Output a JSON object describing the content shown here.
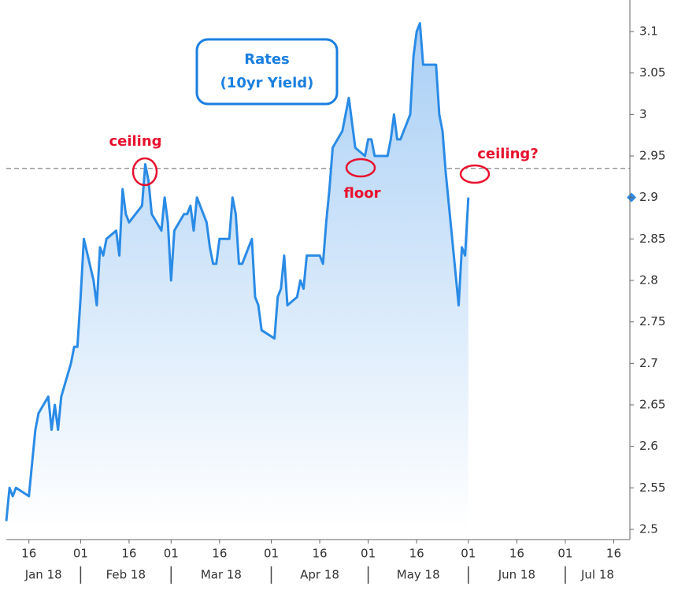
{
  "chart_data": {
    "type": "line",
    "title": "Rates",
    "subtitle": "(10yr Yield)",
    "x": [
      "2018-01-09",
      "2018-01-10",
      "2018-01-11",
      "2018-01-12",
      "2018-01-16",
      "2018-01-17",
      "2018-01-18",
      "2018-01-19",
      "2018-01-22",
      "2018-01-23",
      "2018-01-24",
      "2018-01-25",
      "2018-01-26",
      "2018-01-29",
      "2018-01-30",
      "2018-01-31",
      "2018-02-01",
      "2018-02-02",
      "2018-02-05",
      "2018-02-06",
      "2018-02-07",
      "2018-02-08",
      "2018-02-09",
      "2018-02-12",
      "2018-02-13",
      "2018-02-14",
      "2018-02-15",
      "2018-02-16",
      "2018-02-20",
      "2018-02-21",
      "2018-02-22",
      "2018-02-23",
      "2018-02-26",
      "2018-02-27",
      "2018-02-28",
      "2018-03-01",
      "2018-03-02",
      "2018-03-05",
      "2018-03-06",
      "2018-03-07",
      "2018-03-08",
      "2018-03-09",
      "2018-03-12",
      "2018-03-13",
      "2018-03-14",
      "2018-03-15",
      "2018-03-16",
      "2018-03-19",
      "2018-03-20",
      "2018-03-21",
      "2018-03-22",
      "2018-03-23",
      "2018-03-26",
      "2018-03-27",
      "2018-03-28",
      "2018-03-29",
      "2018-04-02",
      "2018-04-03",
      "2018-04-04",
      "2018-04-05",
      "2018-04-06",
      "2018-04-09",
      "2018-04-10",
      "2018-04-11",
      "2018-04-12",
      "2018-04-13",
      "2018-04-16",
      "2018-04-17",
      "2018-04-18",
      "2018-04-19",
      "2018-04-20",
      "2018-04-23",
      "2018-04-24",
      "2018-04-25",
      "2018-04-26",
      "2018-04-27",
      "2018-04-30",
      "2018-05-01",
      "2018-05-02",
      "2018-05-03",
      "2018-05-04",
      "2018-05-07",
      "2018-05-08",
      "2018-05-09",
      "2018-05-10",
      "2018-05-11",
      "2018-05-14",
      "2018-05-15",
      "2018-05-16",
      "2018-05-17",
      "2018-05-18",
      "2018-05-21",
      "2018-05-22",
      "2018-05-23",
      "2018-05-24",
      "2018-05-25",
      "2018-05-29",
      "2018-05-30",
      "2018-05-31",
      "2018-06-01"
    ],
    "values": [
      2.51,
      2.55,
      2.54,
      2.55,
      2.54,
      2.58,
      2.62,
      2.64,
      2.66,
      2.62,
      2.65,
      2.62,
      2.66,
      2.7,
      2.72,
      2.72,
      2.78,
      2.85,
      2.8,
      2.77,
      2.84,
      2.83,
      2.85,
      2.86,
      2.83,
      2.91,
      2.88,
      2.87,
      2.89,
      2.94,
      2.92,
      2.88,
      2.86,
      2.9,
      2.87,
      2.8,
      2.86,
      2.88,
      2.88,
      2.89,
      2.86,
      2.9,
      2.87,
      2.84,
      2.82,
      2.82,
      2.85,
      2.85,
      2.9,
      2.88,
      2.82,
      2.82,
      2.85,
      2.78,
      2.77,
      2.74,
      2.73,
      2.78,
      2.79,
      2.83,
      2.77,
      2.78,
      2.8,
      2.79,
      2.83,
      2.83,
      2.83,
      2.82,
      2.87,
      2.91,
      2.96,
      2.98,
      3.0,
      3.02,
      2.99,
      2.96,
      2.95,
      2.97,
      2.97,
      2.95,
      2.95,
      2.95,
      2.97,
      3.0,
      2.97,
      2.97,
      3.0,
      3.07,
      3.1,
      3.11,
      3.06,
      3.06,
      3.06,
      3.0,
      2.98,
      2.93,
      2.77,
      2.84,
      2.83,
      2.9
    ],
    "color": "#2a8be6",
    "xlim": [
      "2018-01-09",
      "2018-07-21"
    ],
    "xticks": [
      {
        "value": "2018-01-16",
        "label": "16"
      },
      {
        "value": "2018-02-01",
        "label": "01"
      },
      {
        "value": "2018-02-16",
        "label": "16"
      },
      {
        "value": "2018-03-01",
        "label": "01"
      },
      {
        "value": "2018-03-16",
        "label": "16"
      },
      {
        "value": "2018-04-01",
        "label": "01"
      },
      {
        "value": "2018-04-16",
        "label": "16"
      },
      {
        "value": "2018-05-01",
        "label": "01"
      },
      {
        "value": "2018-05-16",
        "label": "16"
      },
      {
        "value": "2018-06-01",
        "label": "01"
      },
      {
        "value": "2018-06-16",
        "label": "16"
      },
      {
        "value": "2018-07-01",
        "label": "01"
      },
      {
        "value": "2018-07-16",
        "label": "16"
      }
    ],
    "month_labels": [
      {
        "value": "2018-01-01",
        "label": "Jan 18"
      },
      {
        "value": "2018-02-01",
        "label": "Feb 18"
      },
      {
        "value": "2018-03-01",
        "label": "Mar 18"
      },
      {
        "value": "2018-04-01",
        "label": "Apr 18"
      },
      {
        "value": "2018-05-01",
        "label": "May 18"
      },
      {
        "value": "2018-06-01",
        "label": "Jun 18"
      },
      {
        "value": "2018-07-01",
        "label": "Jul 18"
      }
    ],
    "ylim": [
      2.5,
      3.1
    ],
    "yticks": [
      2.5,
      2.55,
      2.6,
      2.65,
      2.7,
      2.75,
      2.8,
      2.85,
      2.9,
      2.95,
      3,
      3.05,
      3.1
    ],
    "reference_line": 2.935,
    "grid": false,
    "annotations": [
      "ceiling",
      "floor",
      "ceiling?"
    ]
  }
}
